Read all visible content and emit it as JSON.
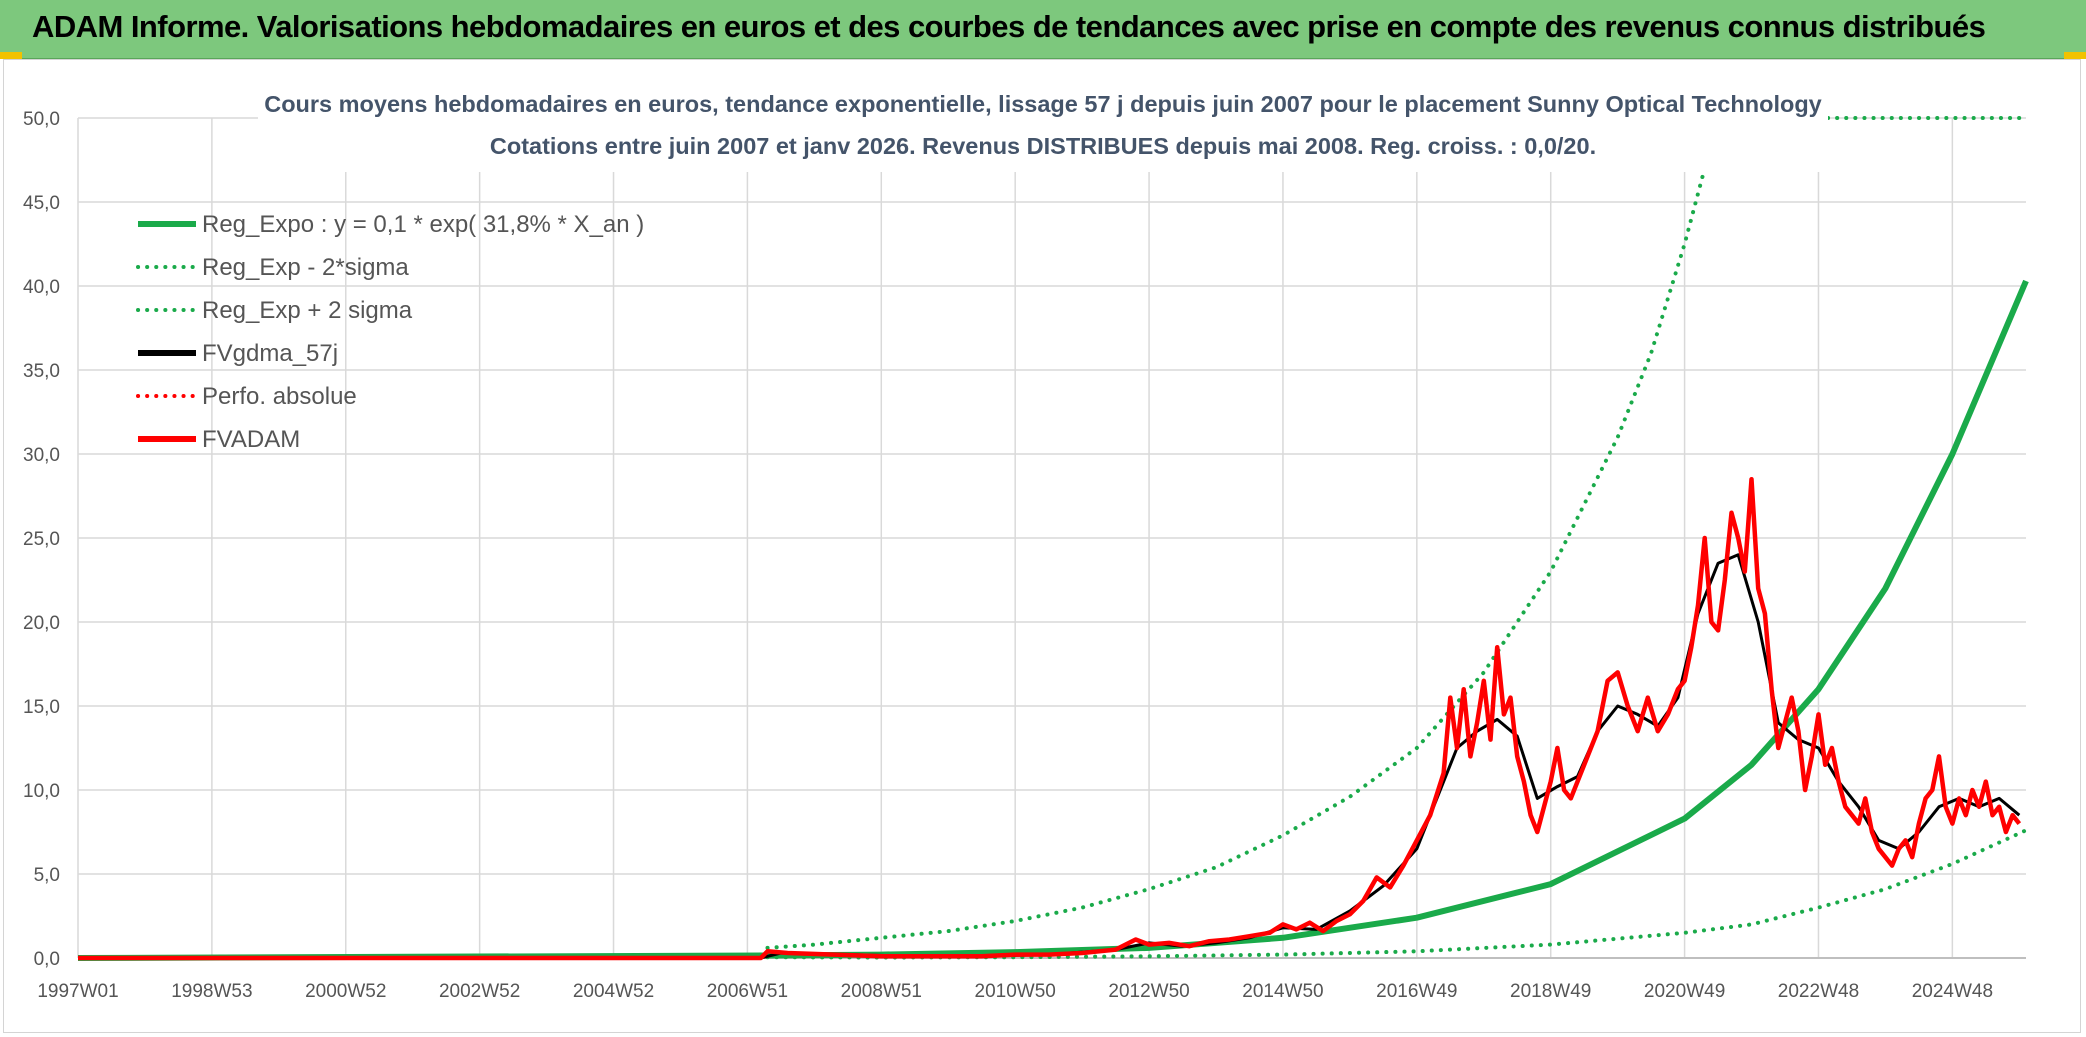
{
  "banner": {
    "title": "ADAM Informe. Valorisations hebdomadaires en euros et des courbes de tendances avec prise en compte des revenus connus distribués"
  },
  "colors": {
    "banner_bg": "#7dc87d",
    "green": "#1aaa4a",
    "black": "#000000",
    "red": "#ff0000",
    "grid": "#d9d9d9",
    "title": "#44546a",
    "corner": "#f2c200"
  },
  "chart_data": {
    "type": "line",
    "title_line1": "Cours moyens hebdomadaires en euros, tendance exponentielle, lissage 57 j depuis juin 2007 pour le placement Sunny Optical Technology",
    "title_line2": "Cotations entre juin 2007 et janv 2026. Revenus DISTRIBUES depuis mai 2008. Reg. croiss. : 0,0/20.",
    "ylim": [
      0,
      50
    ],
    "yticks": [
      "0,0",
      "5,0",
      "10,0",
      "15,0",
      "20,0",
      "25,0",
      "30,0",
      "35,0",
      "40,0",
      "45,0",
      "50,0"
    ],
    "xlim": [
      1997.0,
      2026.1
    ],
    "xticks": [
      {
        "label": "1997W01",
        "x": 1997.0
      },
      {
        "label": "1998W53",
        "x": 1999.0
      },
      {
        "label": "2000W52",
        "x": 2001.0
      },
      {
        "label": "2002W52",
        "x": 2003.0
      },
      {
        "label": "2004W52",
        "x": 2005.0
      },
      {
        "label": "2006W51",
        "x": 2007.0
      },
      {
        "label": "2008W51",
        "x": 2009.0
      },
      {
        "label": "2010W50",
        "x": 2011.0
      },
      {
        "label": "2012W50",
        "x": 2013.0
      },
      {
        "label": "2014W50",
        "x": 2015.0
      },
      {
        "label": "2016W49",
        "x": 2017.0
      },
      {
        "label": "2018W49",
        "x": 2019.0
      },
      {
        "label": "2020W49",
        "x": 2021.0
      },
      {
        "label": "2022W48",
        "x": 2023.0
      },
      {
        "label": "2024W48",
        "x": 2025.0
      }
    ],
    "legend": [
      {
        "label": "Reg_Expo : y = 0,1 * exp( 31,8% *  X_an )",
        "color": "#1aaa4a",
        "style": "solid"
      },
      {
        "label": "Reg_Exp - 2*sigma",
        "color": "#1aaa4a",
        "style": "dotted"
      },
      {
        "label": "Reg_Exp + 2 sigma",
        "color": "#1aaa4a",
        "style": "dotted"
      },
      {
        "label": "FVgdma_57j",
        "color": "#000000",
        "style": "solid"
      },
      {
        "label": "Perfo. absolue",
        "color": "#ff0000",
        "style": "dotted"
      },
      {
        "label": "FVADAM",
        "color": "#ff0000",
        "style": "solid"
      }
    ],
    "series": [
      {
        "name": "Reg_Expo",
        "color": "#1aaa4a",
        "style": "solid",
        "width": 6,
        "x": [
          1997.0,
          2007.3,
          2009.0,
          2011.0,
          2013.0,
          2015.0,
          2017.0,
          2019.0,
          2021.0,
          2022.0,
          2023.0,
          2024.0,
          2025.0,
          2026.1
        ],
        "values": [
          0,
          0.15,
          0.2,
          0.35,
          0.6,
          1.2,
          2.4,
          4.4,
          8.3,
          11.5,
          16.0,
          22.0,
          30.0,
          40.3
        ]
      },
      {
        "name": "Reg_Exp - 2*sigma",
        "color": "#1aaa4a",
        "style": "dotted",
        "width": 4,
        "x": [
          2007.3,
          2009.0,
          2011.0,
          2013.0,
          2015.0,
          2017.0,
          2019.0,
          2021.0,
          2022.0,
          2023.0,
          2024.0,
          2025.0,
          2026.1
        ],
        "values": [
          0.05,
          0.03,
          0.05,
          0.1,
          0.2,
          0.4,
          0.8,
          1.5,
          2.0,
          3.0,
          4.1,
          5.6,
          7.6
        ]
      },
      {
        "name": "Reg_Exp + 2 sigma",
        "color": "#1aaa4a",
        "style": "dotted",
        "width": 4,
        "x": [
          2007.3,
          2008.0,
          2009.0,
          2010.0,
          2011.0,
          2012.0,
          2013.0,
          2014.0,
          2015.0,
          2016.0,
          2017.0,
          2018.0,
          2019.0,
          2020.0,
          2020.5,
          2021.0,
          2021.3
        ],
        "values": [
          0.6,
          0.8,
          1.2,
          1.6,
          2.2,
          3.0,
          4.1,
          5.4,
          7.3,
          9.6,
          12.5,
          17.0,
          23.0,
          31.0,
          36.0,
          42.5,
          47.0
        ]
      },
      {
        "name": "FVgdma_57j",
        "color": "#000000",
        "style": "solid",
        "width": 3,
        "x": [
          1997.0,
          2007.2,
          2007.5,
          2008.5,
          2009.5,
          2010.5,
          2011.5,
          2012.5,
          2013.0,
          2013.5,
          2014.0,
          2014.5,
          2015.0,
          2015.5,
          2016.0,
          2016.5,
          2017.0,
          2017.3,
          2017.6,
          2017.9,
          2018.2,
          2018.5,
          2018.8,
          2019.1,
          2019.4,
          2019.7,
          2020.0,
          2020.3,
          2020.6,
          2020.9,
          2021.2,
          2021.5,
          2021.8,
          2022.1,
          2022.4,
          2022.7,
          2023.0,
          2023.3,
          2023.6,
          2023.9,
          2024.2,
          2024.5,
          2024.8,
          2025.1,
          2025.4,
          2025.7,
          2026.0
        ],
        "values": [
          0,
          0,
          0.3,
          0.2,
          0.1,
          0.1,
          0.2,
          0.5,
          0.9,
          0.7,
          0.9,
          1.2,
          1.8,
          1.7,
          2.8,
          4.3,
          6.5,
          9.5,
          12.5,
          13.5,
          14.2,
          13.2,
          9.5,
          10.2,
          10.8,
          13.5,
          15.0,
          14.5,
          13.8,
          15.5,
          20.5,
          23.5,
          24.0,
          20.0,
          14.0,
          13.0,
          12.5,
          10.5,
          9.0,
          7.0,
          6.5,
          7.5,
          9.0,
          9.5,
          9.0,
          9.5,
          8.5
        ]
      },
      {
        "name": "FVADAM",
        "color": "#ff0000",
        "style": "solid",
        "width": 4.5,
        "x": [
          1997.0,
          2007.2,
          2007.3,
          2007.6,
          2008.3,
          2009.0,
          2009.5,
          2010.0,
          2010.5,
          2011.0,
          2011.5,
          2012.0,
          2012.5,
          2012.8,
          2013.0,
          2013.3,
          2013.6,
          2013.9,
          2014.2,
          2014.5,
          2014.8,
          2015.0,
          2015.2,
          2015.4,
          2015.6,
          2015.8,
          2016.0,
          2016.2,
          2016.4,
          2016.6,
          2016.8,
          2017.0,
          2017.2,
          2017.4,
          2017.5,
          2017.6,
          2017.7,
          2017.8,
          2017.9,
          2018.0,
          2018.1,
          2018.2,
          2018.3,
          2018.4,
          2018.5,
          2018.6,
          2018.7,
          2018.8,
          2018.9,
          2019.0,
          2019.1,
          2019.2,
          2019.3,
          2019.5,
          2019.7,
          2019.85,
          2020.0,
          2020.15,
          2020.3,
          2020.45,
          2020.6,
          2020.75,
          2020.9,
          2021.0,
          2021.1,
          2021.2,
          2021.3,
          2021.4,
          2021.5,
          2021.6,
          2021.7,
          2021.8,
          2021.9,
          2022.0,
          2022.1,
          2022.2,
          2022.3,
          2022.4,
          2022.5,
          2022.6,
          2022.7,
          2022.8,
          2022.9,
          2023.0,
          2023.1,
          2023.2,
          2023.3,
          2023.4,
          2023.5,
          2023.6,
          2023.7,
          2023.8,
          2023.9,
          2024.0,
          2024.1,
          2024.2,
          2024.3,
          2024.4,
          2024.5,
          2024.6,
          2024.7,
          2024.8,
          2024.9,
          2025.0,
          2025.1,
          2025.2,
          2025.3,
          2025.4,
          2025.5,
          2025.6,
          2025.7,
          2025.8,
          2025.9,
          2026.0
        ],
        "values": [
          0,
          0,
          0.4,
          0.3,
          0.2,
          0.1,
          0.1,
          0.1,
          0.1,
          0.2,
          0.2,
          0.3,
          0.5,
          1.1,
          0.8,
          0.9,
          0.7,
          1.0,
          1.1,
          1.3,
          1.5,
          2.0,
          1.7,
          2.1,
          1.6,
          2.2,
          2.6,
          3.4,
          4.8,
          4.2,
          5.5,
          7.0,
          8.5,
          11.0,
          15.5,
          12.5,
          16.0,
          12.0,
          14.0,
          16.5,
          13.0,
          18.5,
          14.5,
          15.5,
          12.0,
          10.5,
          8.5,
          7.5,
          9.0,
          10.5,
          12.5,
          10.0,
          9.5,
          11.5,
          13.5,
          16.5,
          17.0,
          15.0,
          13.5,
          15.5,
          13.5,
          14.5,
          16.0,
          16.5,
          18.5,
          21.0,
          25.0,
          20.0,
          19.5,
          22.5,
          26.5,
          25.0,
          23.0,
          28.5,
          22.0,
          20.5,
          16.0,
          12.5,
          14.0,
          15.5,
          13.5,
          10.0,
          12.0,
          14.5,
          11.5,
          12.5,
          10.5,
          9.0,
          8.5,
          8.0,
          9.5,
          7.5,
          6.5,
          6.0,
          5.5,
          6.5,
          7.0,
          6.0,
          8.0,
          9.5,
          10.0,
          12.0,
          9.0,
          8.0,
          9.5,
          8.5,
          10.0,
          9.0,
          10.5,
          8.5,
          9.0,
          7.5,
          8.5,
          8.0
        ]
      }
    ]
  }
}
